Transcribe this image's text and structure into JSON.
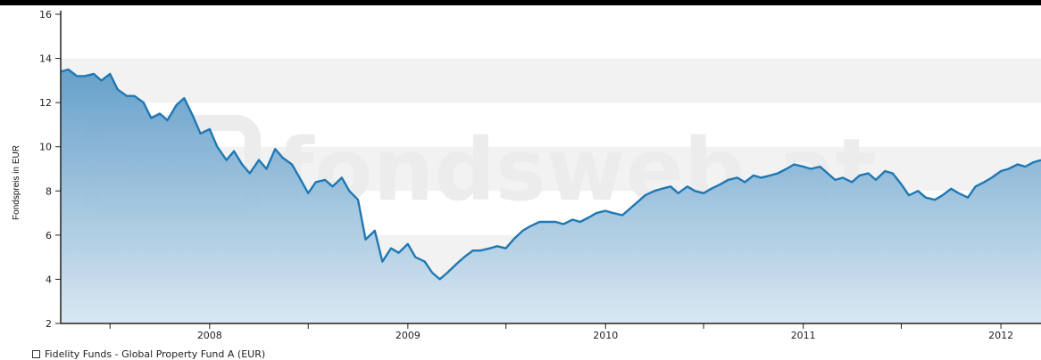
{
  "chart_data": {
    "type": "area",
    "title": "",
    "ylabel": "Fondspreis in EUR",
    "xlabel": "",
    "ylim": [
      2,
      16
    ],
    "xlim": [
      "2007-04-01",
      "2012-03-15"
    ],
    "yticks": [
      "2",
      "4",
      "6",
      "8",
      "10",
      "12",
      "14",
      "16"
    ],
    "xticks": [
      "2008",
      "2009",
      "2010",
      "2011",
      "2012"
    ],
    "grid": "alternating horizontal bands",
    "legend_position": "bottom-left",
    "watermark": "fondsweb.at",
    "colors": {
      "line": "#1f78b4",
      "fill_top": "#6fa8cf",
      "fill_bottom": "#d6e6f1",
      "band": "#f2f2f2"
    },
    "series": [
      {
        "name": "Fidelity Funds - Global Property Fund A (EUR)",
        "points": [
          [
            "2007-04-01",
            13.4
          ],
          [
            "2007-04-15",
            13.5
          ],
          [
            "2007-05-01",
            13.2
          ],
          [
            "2007-05-15",
            13.2
          ],
          [
            "2007-06-01",
            13.3
          ],
          [
            "2007-06-15",
            13.0
          ],
          [
            "2007-07-01",
            13.3
          ],
          [
            "2007-07-15",
            12.6
          ],
          [
            "2007-08-01",
            12.3
          ],
          [
            "2007-08-15",
            12.3
          ],
          [
            "2007-09-01",
            12.0
          ],
          [
            "2007-09-15",
            11.3
          ],
          [
            "2007-10-01",
            11.5
          ],
          [
            "2007-10-15",
            11.2
          ],
          [
            "2007-11-01",
            11.9
          ],
          [
            "2007-11-15",
            12.2
          ],
          [
            "2007-12-01",
            11.4
          ],
          [
            "2007-12-15",
            10.6
          ],
          [
            "2008-01-01",
            10.8
          ],
          [
            "2008-01-15",
            10.0
          ],
          [
            "2008-02-01",
            9.4
          ],
          [
            "2008-02-15",
            9.8
          ],
          [
            "2008-03-01",
            9.2
          ],
          [
            "2008-03-15",
            8.8
          ],
          [
            "2008-04-01",
            9.4
          ],
          [
            "2008-04-15",
            9.0
          ],
          [
            "2008-05-01",
            9.9
          ],
          [
            "2008-05-15",
            9.5
          ],
          [
            "2008-06-01",
            9.2
          ],
          [
            "2008-06-15",
            8.6
          ],
          [
            "2008-07-01",
            7.9
          ],
          [
            "2008-07-15",
            8.4
          ],
          [
            "2008-08-01",
            8.5
          ],
          [
            "2008-08-15",
            8.2
          ],
          [
            "2008-09-01",
            8.6
          ],
          [
            "2008-09-15",
            8.0
          ],
          [
            "2008-10-01",
            7.6
          ],
          [
            "2008-10-15",
            5.8
          ],
          [
            "2008-11-01",
            6.2
          ],
          [
            "2008-11-15",
            4.8
          ],
          [
            "2008-12-01",
            5.4
          ],
          [
            "2008-12-15",
            5.2
          ],
          [
            "2009-01-01",
            5.6
          ],
          [
            "2009-01-15",
            5.0
          ],
          [
            "2009-02-01",
            4.8
          ],
          [
            "2009-02-15",
            4.3
          ],
          [
            "2009-03-01",
            4.0
          ],
          [
            "2009-03-15",
            4.3
          ],
          [
            "2009-04-01",
            4.7
          ],
          [
            "2009-04-15",
            5.0
          ],
          [
            "2009-05-01",
            5.3
          ],
          [
            "2009-05-15",
            5.3
          ],
          [
            "2009-06-01",
            5.4
          ],
          [
            "2009-06-15",
            5.5
          ],
          [
            "2009-07-01",
            5.4
          ],
          [
            "2009-07-15",
            5.8
          ],
          [
            "2009-08-01",
            6.2
          ],
          [
            "2009-08-15",
            6.4
          ],
          [
            "2009-09-01",
            6.6
          ],
          [
            "2009-09-15",
            6.6
          ],
          [
            "2009-10-01",
            6.6
          ],
          [
            "2009-10-15",
            6.5
          ],
          [
            "2009-11-01",
            6.7
          ],
          [
            "2009-11-15",
            6.6
          ],
          [
            "2009-12-01",
            6.8
          ],
          [
            "2009-12-15",
            7.0
          ],
          [
            "2010-01-01",
            7.1
          ],
          [
            "2010-01-15",
            7.0
          ],
          [
            "2010-02-01",
            6.9
          ],
          [
            "2010-02-15",
            7.2
          ],
          [
            "2010-03-01",
            7.5
          ],
          [
            "2010-03-15",
            7.8
          ],
          [
            "2010-04-01",
            8.0
          ],
          [
            "2010-04-15",
            8.1
          ],
          [
            "2010-05-01",
            8.2
          ],
          [
            "2010-05-15",
            7.9
          ],
          [
            "2010-06-01",
            8.2
          ],
          [
            "2010-06-15",
            8.0
          ],
          [
            "2010-07-01",
            7.9
          ],
          [
            "2010-07-15",
            8.1
          ],
          [
            "2010-08-01",
            8.3
          ],
          [
            "2010-08-15",
            8.5
          ],
          [
            "2010-09-01",
            8.6
          ],
          [
            "2010-09-15",
            8.4
          ],
          [
            "2010-10-01",
            8.7
          ],
          [
            "2010-10-15",
            8.6
          ],
          [
            "2010-11-01",
            8.7
          ],
          [
            "2010-11-15",
            8.8
          ],
          [
            "2010-12-01",
            9.0
          ],
          [
            "2010-12-15",
            9.2
          ],
          [
            "2011-01-01",
            9.1
          ],
          [
            "2011-01-15",
            9.0
          ],
          [
            "2011-02-01",
            9.1
          ],
          [
            "2011-02-15",
            8.8
          ],
          [
            "2011-03-01",
            8.5
          ],
          [
            "2011-03-15",
            8.6
          ],
          [
            "2011-04-01",
            8.4
          ],
          [
            "2011-04-15",
            8.7
          ],
          [
            "2011-05-01",
            8.8
          ],
          [
            "2011-05-15",
            8.5
          ],
          [
            "2011-06-01",
            8.9
          ],
          [
            "2011-06-15",
            8.8
          ],
          [
            "2011-07-01",
            8.3
          ],
          [
            "2011-07-15",
            7.8
          ],
          [
            "2011-08-01",
            8.0
          ],
          [
            "2011-08-15",
            7.7
          ],
          [
            "2011-09-01",
            7.6
          ],
          [
            "2011-09-15",
            7.8
          ],
          [
            "2011-10-01",
            8.1
          ],
          [
            "2011-10-15",
            7.9
          ],
          [
            "2011-11-01",
            7.7
          ],
          [
            "2011-11-15",
            8.2
          ],
          [
            "2011-12-01",
            8.4
          ],
          [
            "2011-12-15",
            8.6
          ],
          [
            "2012-01-01",
            8.9
          ],
          [
            "2012-01-15",
            9.0
          ],
          [
            "2012-02-01",
            9.2
          ],
          [
            "2012-02-15",
            9.1
          ],
          [
            "2012-03-01",
            9.3
          ],
          [
            "2012-03-15",
            9.4
          ]
        ]
      }
    ]
  }
}
